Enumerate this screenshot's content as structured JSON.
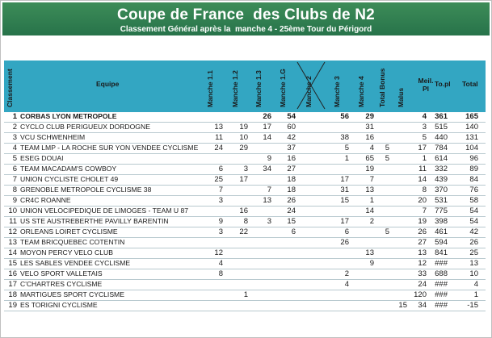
{
  "title": "Coupe de France  des Clubs de N2",
  "subtitle": "Classement Général après la  manche 4 - 25ème Tour du Périgord",
  "columns": {
    "classement": "Classement",
    "equipe": "Equipe",
    "m11": "Manche 1.1",
    "m12": "Manche 1.2",
    "m13": "Manche 1.3",
    "m1g": "Manche 1.G",
    "m2": "Manche 2",
    "m3": "Manche 3",
    "m4": "Manche 4",
    "bonus": "Total Bonus",
    "malus": "Malus",
    "meil": "Meil. Pl",
    "topl": "To.pl",
    "total": "Total"
  },
  "rows": [
    {
      "rank": "1",
      "team": "CORBAS LYON METROPOLE",
      "m11": "",
      "m12": "",
      "m13": "26",
      "m1g": "54",
      "m3": "56",
      "m4": "29",
      "bonus": "",
      "malus": "",
      "meil": "4",
      "topl": "361",
      "total": "165",
      "bold": true
    },
    {
      "rank": "2",
      "team": "CYCLO CLUB PERIGUEUX DORDOGNE",
      "m11": "13",
      "m12": "19",
      "m13": "17",
      "m1g": "60",
      "m3": "",
      "m4": "31",
      "bonus": "",
      "malus": "",
      "meil": "3",
      "topl": "515",
      "total": "140"
    },
    {
      "rank": "3",
      "team": "VCU SCHWENHEIM",
      "m11": "11",
      "m12": "10",
      "m13": "14",
      "m1g": "42",
      "m3": "38",
      "m4": "16",
      "bonus": "",
      "malus": "",
      "meil": "5",
      "topl": "440",
      "total": "131"
    },
    {
      "rank": "4",
      "team": "TEAM LMP - LA ROCHE SUR YON VENDEE CYCLISME",
      "m11": "24",
      "m12": "29",
      "m13": "",
      "m1g": "37",
      "m3": "5",
      "m4": "4",
      "bonus": "5",
      "malus": "",
      "meil": "17",
      "topl": "784",
      "total": "104"
    },
    {
      "rank": "5",
      "team": "ESEG DOUAI",
      "m11": "",
      "m12": "",
      "m13": "9",
      "m1g": "16",
      "m3": "1",
      "m4": "65",
      "bonus": "5",
      "malus": "",
      "meil": "1",
      "topl": "614",
      "total": "96"
    },
    {
      "rank": "6",
      "team": "TEAM MACADAM'S COWBOY",
      "m11": "6",
      "m12": "3",
      "m13": "34",
      "m1g": "27",
      "m3": "",
      "m4": "19",
      "bonus": "",
      "malus": "",
      "meil": "11",
      "topl": "332",
      "total": "89"
    },
    {
      "rank": "7",
      "team": "UNION CYCLISTE CHOLET 49",
      "m11": "25",
      "m12": "17",
      "m13": "",
      "m1g": "18",
      "m3": "17",
      "m4": "7",
      "bonus": "",
      "malus": "",
      "meil": "14",
      "topl": "439",
      "total": "84"
    },
    {
      "rank": "8",
      "team": "GRENOBLE METROPOLE CYCLISME 38",
      "m11": "7",
      "m12": "",
      "m13": "7",
      "m1g": "18",
      "m3": "31",
      "m4": "13",
      "bonus": "",
      "malus": "",
      "meil": "8",
      "topl": "370",
      "total": "76"
    },
    {
      "rank": "9",
      "team": "CR4C ROANNE",
      "m11": "3",
      "m12": "",
      "m13": "13",
      "m1g": "26",
      "m3": "15",
      "m4": "1",
      "bonus": "",
      "malus": "",
      "meil": "20",
      "topl": "531",
      "total": "58"
    },
    {
      "rank": "10",
      "team": "UNION VELOCIPEDIQUE DE LIMOGES - TEAM U 87",
      "m11": "",
      "m12": "16",
      "m13": "",
      "m1g": "24",
      "m3": "",
      "m4": "14",
      "bonus": "",
      "malus": "",
      "meil": "7",
      "topl": "775",
      "total": "54"
    },
    {
      "rank": "11",
      "team": "US STE AUSTREBERTHE PAVILLY BARENTIN",
      "m11": "9",
      "m12": "8",
      "m13": "3",
      "m1g": "15",
      "m3": "17",
      "m4": "2",
      "bonus": "",
      "malus": "",
      "meil": "19",
      "topl": "398",
      "total": "54"
    },
    {
      "rank": "12",
      "team": "ORLEANS LOIRET CYCLISME",
      "m11": "3",
      "m12": "22",
      "m13": "",
      "m1g": "6",
      "m3": "6",
      "m4": "",
      "bonus": "5",
      "malus": "",
      "meil": "26",
      "topl": "461",
      "total": "42"
    },
    {
      "rank": "13",
      "team": "TEAM BRICQUEBEC COTENTIN",
      "m11": "",
      "m12": "",
      "m13": "",
      "m1g": "",
      "m3": "26",
      "m4": "",
      "bonus": "",
      "malus": "",
      "meil": "27",
      "topl": "594",
      "total": "26"
    },
    {
      "rank": "14",
      "team": "MOYON PERCY VELO CLUB",
      "m11": "12",
      "m12": "",
      "m13": "",
      "m1g": "",
      "m3": "",
      "m4": "13",
      "bonus": "",
      "malus": "",
      "meil": "13",
      "topl": "841",
      "total": "25"
    },
    {
      "rank": "15",
      "team": "LES SABLES VENDEE CYCLISME",
      "m11": "4",
      "m12": "",
      "m13": "",
      "m1g": "",
      "m3": "",
      "m4": "9",
      "bonus": "",
      "malus": "",
      "meil": "12",
      "topl": "###",
      "total": "13"
    },
    {
      "rank": "16",
      "team": "VELO SPORT VALLETAIS",
      "m11": "8",
      "m12": "",
      "m13": "",
      "m1g": "",
      "m3": "2",
      "m4": "",
      "bonus": "",
      "malus": "",
      "meil": "33",
      "topl": "688",
      "total": "10"
    },
    {
      "rank": "17",
      "team": "C'CHARTRES CYCLISME",
      "m11": "",
      "m12": "",
      "m13": "",
      "m1g": "",
      "m3": "4",
      "m4": "",
      "bonus": "",
      "malus": "",
      "meil": "24",
      "topl": "###",
      "total": "4"
    },
    {
      "rank": "18",
      "team": "MARTIGUES SPORT CYCLISME",
      "m11": "",
      "m12": "1",
      "m13": "",
      "m1g": "",
      "m3": "",
      "m4": "",
      "bonus": "",
      "malus": "",
      "meil": "120",
      "topl": "###",
      "total": "1"
    },
    {
      "rank": "19",
      "team": "ES TORIGNI CYCLISME",
      "m11": "",
      "m12": "",
      "m13": "",
      "m1g": "",
      "m3": "",
      "m4": "",
      "bonus": "",
      "malus": "15",
      "meil": "34",
      "topl": "###",
      "total": "-15"
    }
  ]
}
